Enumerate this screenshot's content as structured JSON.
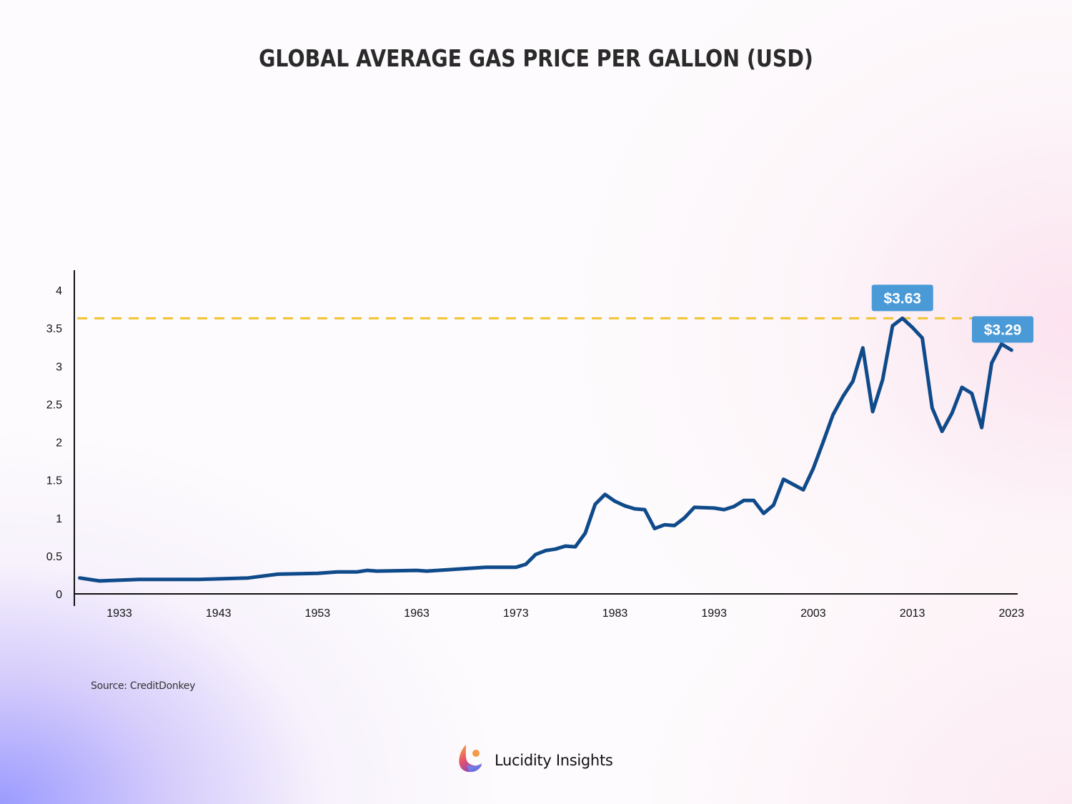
{
  "chart_data": {
    "type": "line",
    "title": "GLOBAL AVERAGE GAS PRICE PER GALLON (USD)",
    "xlabel": "",
    "ylabel": "",
    "xlim": [
      1929,
      2023
    ],
    "ylim": [
      0,
      4.25
    ],
    "grid": false,
    "legend": "none",
    "x_ticks": [
      "1933",
      "1943",
      "1953",
      "1963",
      "1973",
      "1983",
      "1993",
      "2003",
      "2013",
      "2023"
    ],
    "y_ticks": [
      "0",
      "0.5",
      "1",
      "1.5",
      "2",
      "2.5",
      "3",
      "3.5",
      "4"
    ],
    "series": [
      {
        "name": "Average gas price per gallon (USD)",
        "color": "#0f4a8a",
        "x": [
          1929,
          1931,
          1935,
          1941,
          1946,
          1949,
          1953,
          1955,
          1957,
          1958,
          1959,
          1963,
          1964,
          1970,
          1973,
          1974,
          1975,
          1976,
          1977,
          1978,
          1979,
          1980,
          1981,
          1982,
          1983,
          1984,
          1985,
          1986,
          1987,
          1988,
          1989,
          1990,
          1991,
          1993,
          1994,
          1995,
          1996,
          1997,
          1998,
          1999,
          2000,
          2001,
          2002,
          2003,
          2004,
          2005,
          2006,
          2007,
          2008,
          2009,
          2010,
          2011,
          2012,
          2013,
          2014,
          2015,
          2016,
          2017,
          2018,
          2019,
          2020,
          2021,
          2022,
          2023
        ],
        "values": [
          0.21,
          0.17,
          0.19,
          0.19,
          0.21,
          0.26,
          0.27,
          0.29,
          0.29,
          0.31,
          0.3,
          0.31,
          0.3,
          0.35,
          0.35,
          0.39,
          0.52,
          0.57,
          0.59,
          0.63,
          0.62,
          0.8,
          1.18,
          1.31,
          1.22,
          1.16,
          1.12,
          1.11,
          0.86,
          0.91,
          0.9,
          1.0,
          1.14,
          1.13,
          1.11,
          1.15,
          1.23,
          1.23,
          1.06,
          1.17,
          1.51,
          1.44,
          1.37,
          1.65,
          2.0,
          2.36,
          2.6,
          2.8,
          3.24,
          2.4,
          2.82,
          3.53,
          3.63,
          3.51,
          3.37,
          2.45,
          2.14,
          2.38,
          2.72,
          2.64,
          2.19,
          3.04,
          3.29,
          3.21
        ]
      }
    ],
    "reference_line": {
      "value": 3.63,
      "style": "dashed",
      "color": "#f0c330"
    },
    "annotations": [
      {
        "label": "$3.63",
        "x": 2012,
        "value": 3.63
      },
      {
        "label": "$3.29",
        "x": 2022,
        "value": 3.29
      }
    ],
    "callout_color": "#4a9ad8"
  },
  "source": "Source: CreditDonkey",
  "brand": {
    "name": "Lucidity Insights",
    "logo_icon": "lucidity-logo-icon"
  }
}
